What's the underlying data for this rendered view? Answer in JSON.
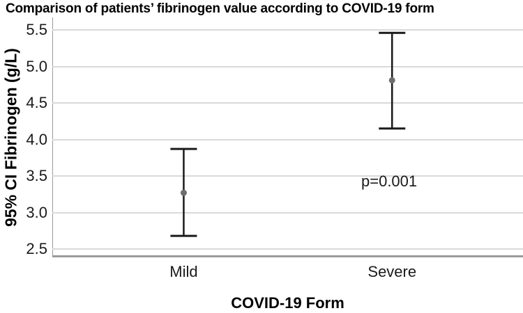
{
  "title": "Comparison of patients’ fibrinogen value according to COVID-19 form",
  "chart_data": {
    "type": "scatter",
    "subtype": "error-bar-95ci",
    "categories": [
      "Mild",
      "Severe"
    ],
    "series": [
      {
        "name": "95% CI Fibrinogen (g/L)",
        "means": [
          3.27,
          4.81
        ],
        "ci_low": [
          2.68,
          4.15
        ],
        "ci_high": [
          3.87,
          5.46
        ]
      }
    ],
    "annotation": "p=0.001",
    "xlabel": "COVID-19 Form",
    "ylabel": "95% CI Fibrinogen (g/L)",
    "yticks": [
      2.5,
      3.0,
      3.5,
      4.0,
      4.5,
      5.0,
      5.5
    ],
    "ylim": [
      2.39,
      5.67
    ],
    "grid": "horizontal-only",
    "legend": "none",
    "colors": {
      "errorbar": "#1a1a1a",
      "marker": "#6e6e6e",
      "gridline": "#d9d9d9",
      "axis": "#9a9a9a",
      "text": "#000000"
    }
  }
}
